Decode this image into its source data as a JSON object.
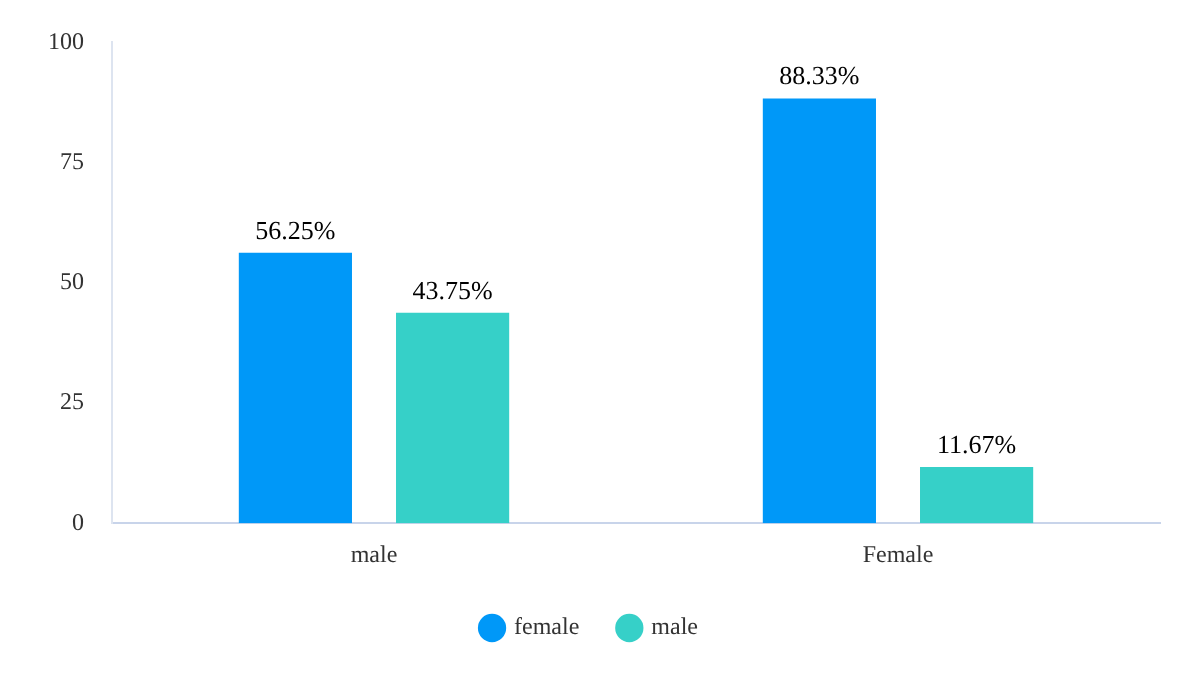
{
  "chart_data": {
    "type": "bar",
    "categories": [
      "male",
      "Female"
    ],
    "series": [
      {
        "name": "female",
        "color": "#0098f8",
        "values": [
          56.25,
          88.33
        ],
        "value_labels": [
          "56.25%",
          "88.33%"
        ]
      },
      {
        "name": "male",
        "color": "#36d0c8",
        "values": [
          43.75,
          11.67
        ],
        "value_labels": [
          "43.75%",
          "11.67%"
        ]
      }
    ],
    "ylim": [
      0,
      100
    ],
    "yticks": [
      0,
      25,
      50,
      75,
      100
    ],
    "grid": false,
    "legend": "bottom"
  }
}
